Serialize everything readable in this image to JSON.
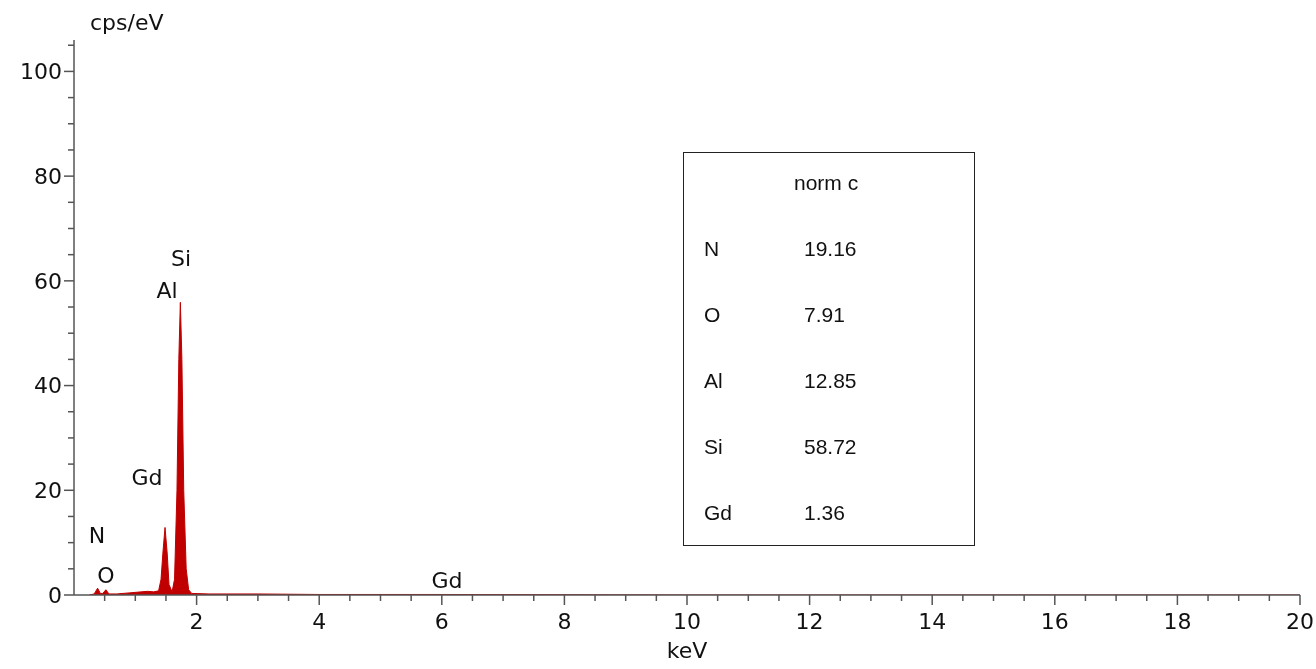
{
  "chart_data": {
    "type": "area",
    "xlabel": "keV",
    "ylabel": "cps/eV",
    "x": [
      0.25,
      0.33,
      0.385,
      0.43,
      0.47,
      0.52,
      0.57,
      0.7,
      0.9,
      1.1,
      1.2,
      1.3,
      1.38,
      1.42,
      1.45,
      1.485,
      1.52,
      1.55,
      1.6,
      1.64,
      1.68,
      1.71,
      1.735,
      1.76,
      1.79,
      1.83,
      1.87,
      1.92,
      2.2,
      3,
      4,
      6,
      10,
      20
    ],
    "series": [
      {
        "color": "#c00000",
        "values": [
          0,
          0.2,
          1.3,
          0.3,
          0.3,
          1.0,
          0.2,
          0.2,
          0.4,
          0.6,
          0.7,
          0.6,
          0.8,
          3,
          8,
          12.9,
          8,
          2,
          0.6,
          3,
          20,
          45,
          55.9,
          45,
          20,
          5,
          1,
          0.3,
          0.2,
          0.2,
          0.1,
          0.1,
          0,
          0
        ]
      }
    ],
    "xlim": [
      0,
      20
    ],
    "ylim": [
      0,
      106
    ],
    "xticks": [
      {
        "value": 0.5,
        "label": null
      },
      {
        "value": 1,
        "label": null
      },
      {
        "value": 1.5,
        "label": null
      },
      2,
      {
        "value": 2.5,
        "label": null
      },
      {
        "value": 3,
        "label": null
      },
      {
        "value": 3.5,
        "label": null
      },
      4,
      {
        "value": 4.5,
        "label": null
      },
      {
        "value": 5,
        "label": null
      },
      {
        "value": 5.5,
        "label": null
      },
      6,
      {
        "value": 6.5,
        "label": null
      },
      {
        "value": 7,
        "label": null
      },
      {
        "value": 7.5,
        "label": null
      },
      8,
      {
        "value": 8.5,
        "label": null
      },
      {
        "value": 9,
        "label": null
      },
      {
        "value": 9.5,
        "label": null
      },
      10,
      {
        "value": 10.5,
        "label": null
      },
      {
        "value": 11,
        "label": null
      },
      {
        "value": 11.5,
        "label": null
      },
      12,
      {
        "value": 12.5,
        "label": null
      },
      {
        "value": 13,
        "label": null
      },
      {
        "value": 13.5,
        "label": null
      },
      14,
      {
        "value": 14.5,
        "label": null
      },
      {
        "value": 15,
        "label": null
      },
      {
        "value": 15.5,
        "label": null
      },
      16,
      {
        "value": 16.5,
        "label": null
      },
      {
        "value": 17,
        "label": null
      },
      {
        "value": 17.5,
        "label": null
      },
      18,
      {
        "value": 18.5,
        "label": null
      },
      {
        "value": 19,
        "label": null
      },
      {
        "value": 19.5,
        "label": null
      },
      20
    ],
    "yticks": [
      0,
      {
        "value": 5,
        "label": null
      },
      {
        "value": 10,
        "label": null
      },
      {
        "value": 15,
        "label": null
      },
      20,
      {
        "value": 25,
        "label": null
      },
      {
        "value": 30,
        "label": null
      },
      {
        "value": 35,
        "label": null
      },
      40,
      {
        "value": 45,
        "label": null
      },
      {
        "value": 50,
        "label": null
      },
      {
        "value": 55,
        "label": null
      },
      60,
      {
        "value": 65,
        "label": null
      },
      {
        "value": 70,
        "label": null
      },
      {
        "value": 75,
        "label": null
      },
      80,
      {
        "value": 85,
        "label": null
      },
      {
        "value": 90,
        "label": null
      },
      {
        "value": 95,
        "label": null
      },
      100,
      {
        "value": 105,
        "label": null
      }
    ],
    "grid": false,
    "legend": false,
    "annotations": [
      "N",
      "O",
      "Gd",
      "Al",
      "Si",
      "Gd",
      "norm c",
      "N",
      "19.16",
      "O",
      "7.91",
      "Al",
      "12.85",
      "Si",
      "58.72",
      "Gd",
      "1.36"
    ]
  }
}
